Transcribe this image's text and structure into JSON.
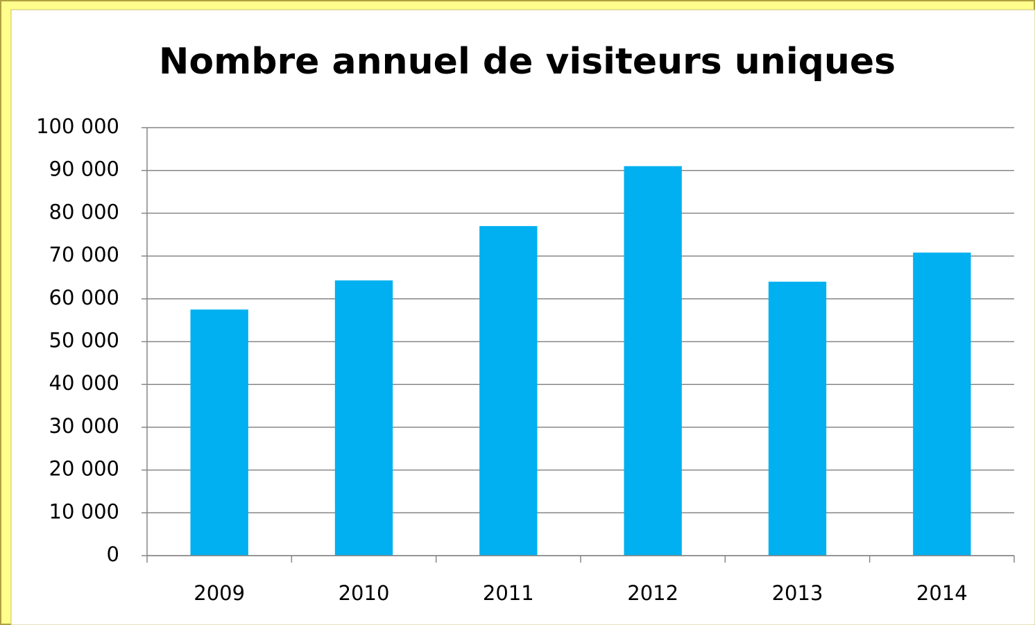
{
  "chart_data": {
    "type": "bar",
    "title": "Nombre annuel de visiteurs uniques",
    "categories": [
      "2009",
      "2010",
      "2011",
      "2012",
      "2013",
      "2014"
    ],
    "values": [
      57500,
      64300,
      77000,
      91000,
      64000,
      70800
    ],
    "color": "#00b0f0",
    "ylim": [
      0,
      100000
    ],
    "yticks": [
      0,
      {
        "value": 10000,
        "label": "10 000"
      },
      {
        "value": 20000,
        "label": "20 000"
      },
      {
        "value": 30000,
        "label": "30 000"
      },
      {
        "value": 40000,
        "label": "40 000"
      },
      {
        "value": 50000,
        "label": "50 000"
      },
      {
        "value": 60000,
        "label": "60 000"
      },
      {
        "value": 70000,
        "label": "70 000"
      },
      {
        "value": 80000,
        "label": "80 000"
      },
      {
        "value": 90000,
        "label": "90 000"
      },
      {
        "value": 100000,
        "label": "100 000"
      }
    ],
    "grid": true
  }
}
